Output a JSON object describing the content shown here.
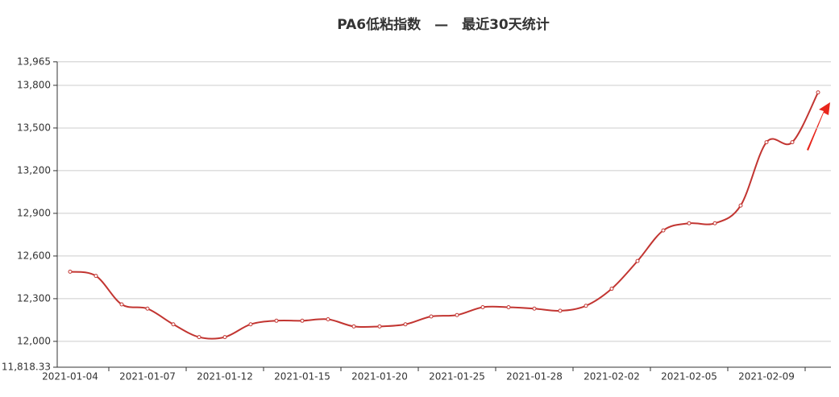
{
  "chart_data": {
    "type": "line",
    "title": "PA6低粘指数　—　最近30天统计",
    "categories": [
      "2021-01-04",
      null,
      null,
      "2021-01-07",
      null,
      null,
      "2021-01-12",
      null,
      null,
      "2021-01-15",
      null,
      null,
      "2021-01-20",
      null,
      null,
      "2021-01-25",
      null,
      null,
      "2021-01-28",
      null,
      null,
      "2021-02-02",
      null,
      null,
      "2021-02-05",
      null,
      null,
      "2021-02-09",
      null,
      null
    ],
    "series": [
      {
        "color": "#c23531",
        "values": [
          12490,
          12460,
          12260,
          12230,
          12120,
          12030,
          12030,
          12120,
          12145,
          12145,
          12155,
          12105,
          12105,
          12120,
          12175,
          12185,
          12240,
          12240,
          12230,
          12215,
          12250,
          12370,
          12565,
          12780,
          12830,
          12830,
          12955,
          13400,
          13400,
          13750
        ]
      }
    ],
    "ylim": [
      11818.33,
      13965
    ],
    "yticks": [
      {
        "value": 11818.33,
        "label": "11,818.33"
      },
      {
        "value": 12000,
        "label": "12,000"
      },
      {
        "value": 12300,
        "label": "12,300"
      },
      {
        "value": 12600,
        "label": "12,600"
      },
      {
        "value": 12900,
        "label": "12,900"
      },
      {
        "value": 13200,
        "label": "13,200"
      },
      {
        "value": 13500,
        "label": "13,500"
      },
      {
        "value": 13800,
        "label": "13,800"
      },
      {
        "value": 13965,
        "label": "13,965"
      }
    ],
    "grid": true
  }
}
